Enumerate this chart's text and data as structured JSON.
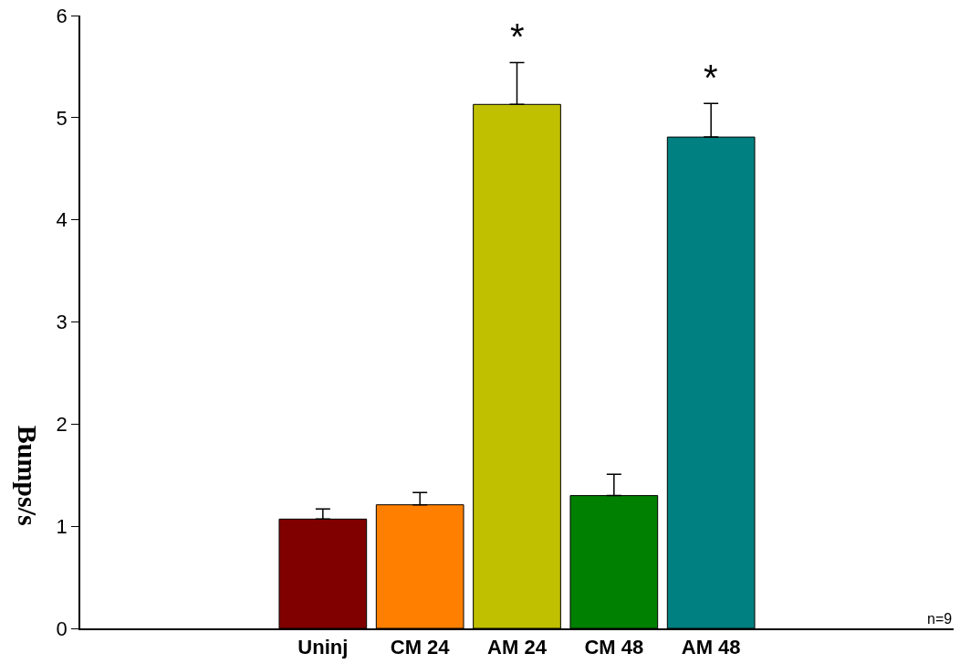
{
  "chart_data": {
    "type": "bar",
    "ylabel": "Bumps/s",
    "categories": [
      null,
      null,
      "Uninj",
      "CM 24",
      "AM 24",
      "CM 48",
      "AM 48",
      null,
      null
    ],
    "values": [
      null,
      null,
      1.07,
      1.21,
      5.13,
      1.3,
      4.81,
      null,
      null
    ],
    "colors": [
      "#ffffff",
      "#ffffff",
      "#800000",
      "#ff8000",
      "#c0c000",
      "#008000",
      "#008080",
      "#ffffff",
      "#ffffff"
    ],
    "errors": [
      null,
      null,
      [
        1.07,
        1.17
      ],
      [
        1.21,
        1.33
      ],
      [
        5.13,
        5.54
      ],
      [
        1.3,
        1.51
      ],
      [
        4.81,
        5.14
      ],
      null,
      null
    ],
    "ylim": [
      0,
      6
    ],
    "yticks": [
      0,
      1,
      2,
      3,
      4,
      5,
      6
    ],
    "grid": false,
    "annotations": [
      {
        "text": "*",
        "x": "AM 24",
        "y": 5.54
      },
      {
        "text": "*",
        "x": "AM 48",
        "y": 5.14
      },
      "n=9"
    ]
  }
}
